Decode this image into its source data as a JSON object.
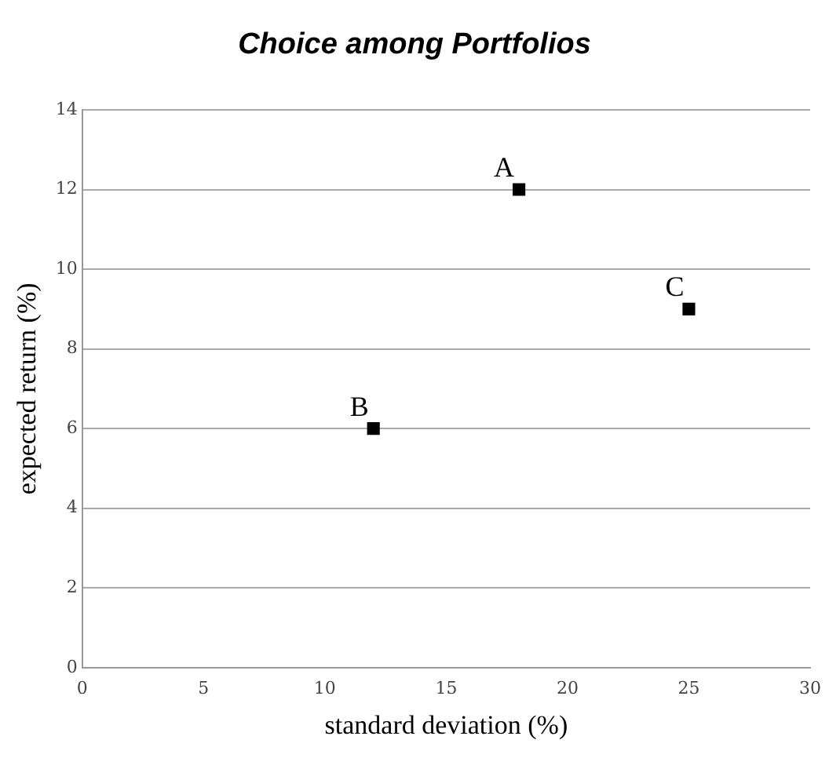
{
  "chart_data": {
    "type": "scatter",
    "title": "Choice among Portfolios",
    "xlabel": "standard deviation (%)",
    "ylabel": "expected return (%)",
    "x": [
      18,
      12,
      25
    ],
    "values": [
      12,
      6,
      9
    ],
    "color": "#000000",
    "marker": "square",
    "xlim": [
      0,
      30
    ],
    "xticks": [
      0,
      5,
      10,
      15,
      20,
      25,
      30
    ],
    "ylim": [
      0,
      14
    ],
    "yticks": [
      0,
      2,
      4,
      6,
      8,
      10,
      12,
      14
    ],
    "grid": "y",
    "annotations": [
      {
        "text": "A",
        "x": 18,
        "y": 12
      },
      {
        "text": "B",
        "x": 12,
        "y": 6
      },
      {
        "text": "C",
        "x": 25,
        "y": 9
      }
    ]
  }
}
